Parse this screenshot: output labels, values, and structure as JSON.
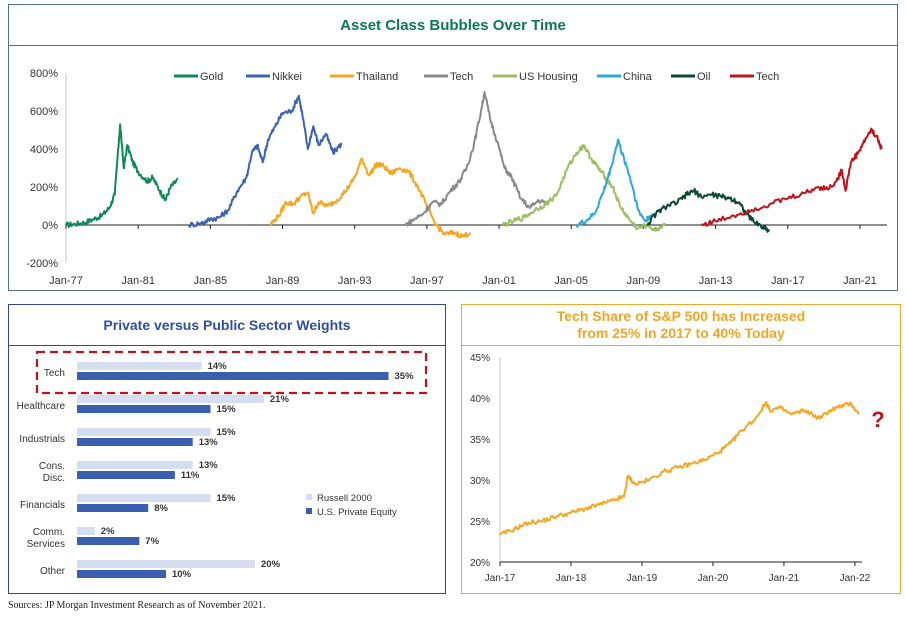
{
  "source": "Sources: JP Morgan Investment Research as of November 2021.",
  "chart_data": [
    {
      "type": "line",
      "title": "Asset Class Bubbles Over Time",
      "xlabel": "",
      "ylabel": "",
      "x_ticks": [
        "Jan-77",
        "Jan-81",
        "Jan-85",
        "Jan-89",
        "Jan-93",
        "Jan-97",
        "Jan-01",
        "Jan-05",
        "Jan-09",
        "Jan-13",
        "Jan-17",
        "Jan-21"
      ],
      "xlim": [
        1977,
        2022.5
      ],
      "y_ticks": [
        "800%",
        "600%",
        "400%",
        "200%",
        "0%",
        "-200%"
      ],
      "ylim": [
        -200,
        800
      ],
      "legend_position": "top",
      "series": [
        {
          "name": "Gold",
          "color": "#0e8a57",
          "points": [
            [
              1977,
              0
            ],
            [
              1977.5,
              5
            ],
            [
              1978,
              12
            ],
            [
              1978.5,
              30
            ],
            [
              1979,
              50
            ],
            [
              1979.4,
              90
            ],
            [
              1979.7,
              160
            ],
            [
              1980.0,
              530
            ],
            [
              1980.2,
              300
            ],
            [
              1980.4,
              420
            ],
            [
              1980.7,
              330
            ],
            [
              1981,
              280
            ],
            [
              1981.5,
              230
            ],
            [
              1981.8,
              250
            ],
            [
              1982.2,
              180
            ],
            [
              1982.5,
              130
            ],
            [
              1982.8,
              200
            ],
            [
              1983.2,
              240
            ]
          ]
        },
        {
          "name": "Nikkei",
          "color": "#3a62b5",
          "points": [
            [
              1983.8,
              0
            ],
            [
              1984.5,
              10
            ],
            [
              1985,
              30
            ],
            [
              1985.5,
              40
            ],
            [
              1986,
              80
            ],
            [
              1986.5,
              180
            ],
            [
              1987,
              250
            ],
            [
              1987.3,
              380
            ],
            [
              1987.6,
              420
            ],
            [
              1987.9,
              330
            ],
            [
              1988.2,
              450
            ],
            [
              1988.6,
              520
            ],
            [
              1989.0,
              590
            ],
            [
              1989.5,
              600
            ],
            [
              1989.9,
              680
            ],
            [
              1990.1,
              580
            ],
            [
              1990.4,
              400
            ],
            [
              1990.7,
              520
            ],
            [
              1991.0,
              420
            ],
            [
              1991.4,
              480
            ],
            [
              1991.8,
              380
            ],
            [
              1992.3,
              430
            ]
          ]
        },
        {
          "name": "Thailand",
          "color": "#f5a623",
          "points": [
            [
              1988.3,
              0
            ],
            [
              1988.8,
              50
            ],
            [
              1989.2,
              120
            ],
            [
              1989.6,
              110
            ],
            [
              1990,
              150
            ],
            [
              1990.4,
              170
            ],
            [
              1990.7,
              60
            ],
            [
              1991.0,
              120
            ],
            [
              1991.5,
              100
            ],
            [
              1992,
              130
            ],
            [
              1992.5,
              180
            ],
            [
              1993,
              250
            ],
            [
              1993.4,
              350
            ],
            [
              1993.8,
              260
            ],
            [
              1994.2,
              320
            ],
            [
              1994.6,
              310
            ],
            [
              1995,
              270
            ],
            [
              1995.5,
              300
            ],
            [
              1996,
              280
            ],
            [
              1996.5,
              200
            ],
            [
              1997,
              100
            ],
            [
              1997.5,
              0
            ],
            [
              1998,
              -50
            ],
            [
              1998.5,
              -40
            ],
            [
              1999,
              -60
            ],
            [
              1999.4,
              -40
            ]
          ]
        },
        {
          "name": "Tech",
          "color": "#8a8a8a",
          "points": [
            [
              1995.8,
              0
            ],
            [
              1996.3,
              30
            ],
            [
              1996.8,
              60
            ],
            [
              1997.3,
              120
            ],
            [
              1997.8,
              110
            ],
            [
              1998.3,
              180
            ],
            [
              1998.8,
              230
            ],
            [
              1999.2,
              300
            ],
            [
              1999.6,
              420
            ],
            [
              2000.0,
              600
            ],
            [
              2000.2,
              700
            ],
            [
              2000.5,
              560
            ],
            [
              2000.9,
              440
            ],
            [
              2001.3,
              300
            ],
            [
              2001.7,
              250
            ],
            [
              2002.2,
              140
            ],
            [
              2002.7,
              90
            ],
            [
              2003.2,
              130
            ],
            [
              2003.7,
              110
            ]
          ]
        },
        {
          "name": "US Housing",
          "color": "#9bbf63",
          "points": [
            [
              2001.2,
              0
            ],
            [
              2001.8,
              20
            ],
            [
              2002.4,
              40
            ],
            [
              2003,
              80
            ],
            [
              2003.6,
              110
            ],
            [
              2004.2,
              160
            ],
            [
              2004.8,
              300
            ],
            [
              2005.3,
              380
            ],
            [
              2005.7,
              420
            ],
            [
              2006.1,
              350
            ],
            [
              2006.5,
              300
            ],
            [
              2006.9,
              250
            ],
            [
              2007.3,
              200
            ],
            [
              2007.7,
              100
            ],
            [
              2008.2,
              30
            ],
            [
              2008.7,
              -20
            ],
            [
              2009.2,
              0
            ],
            [
              2009.7,
              -30
            ],
            [
              2010.2,
              10
            ]
          ]
        },
        {
          "name": "China",
          "color": "#2aa9d9",
          "points": [
            [
              2005.3,
              0
            ],
            [
              2005.8,
              20
            ],
            [
              2006.3,
              60
            ],
            [
              2006.8,
              180
            ],
            [
              2007.2,
              300
            ],
            [
              2007.6,
              450
            ],
            [
              2007.8,
              380
            ],
            [
              2008.1,
              300
            ],
            [
              2008.4,
              200
            ],
            [
              2008.7,
              80
            ],
            [
              2009.1,
              20
            ],
            [
              2009.5,
              60
            ]
          ]
        },
        {
          "name": "Oil",
          "color": "#0b4a30",
          "points": [
            [
              2009.2,
              0
            ],
            [
              2009.7,
              60
            ],
            [
              2010.3,
              100
            ],
            [
              2010.9,
              120
            ],
            [
              2011.4,
              160
            ],
            [
              2011.8,
              180
            ],
            [
              2012.2,
              150
            ],
            [
              2012.8,
              160
            ],
            [
              2013.3,
              150
            ],
            [
              2013.8,
              140
            ],
            [
              2014.3,
              120
            ],
            [
              2014.7,
              60
            ],
            [
              2015.1,
              20
            ],
            [
              2015.6,
              -10
            ],
            [
              2016.0,
              -30
            ]
          ]
        },
        {
          "name": "Tech",
          "color": "#c0141c",
          "points": [
            [
              2012.2,
              0
            ],
            [
              2013,
              20
            ],
            [
              2014,
              50
            ],
            [
              2015,
              80
            ],
            [
              2016,
              110
            ],
            [
              2017,
              140
            ],
            [
              2018,
              170
            ],
            [
              2018.7,
              200
            ],
            [
              2019.2,
              190
            ],
            [
              2019.7,
              230
            ],
            [
              2020.0,
              290
            ],
            [
              2020.2,
              180
            ],
            [
              2020.5,
              330
            ],
            [
              2020.9,
              380
            ],
            [
              2021.3,
              450
            ],
            [
              2021.6,
              500
            ],
            [
              2021.9,
              470
            ],
            [
              2022.2,
              400
            ]
          ]
        }
      ]
    },
    {
      "type": "bar",
      "orientation": "horizontal",
      "title": "Private versus Public Sector Weights",
      "categories": [
        "Tech",
        "Healthcare",
        "Industrials",
        "Cons.\nDisc.",
        "Financials",
        "Comm.\nServices",
        "Other"
      ],
      "xlim": [
        0,
        40
      ],
      "legend_position": "right",
      "highlight": "Tech",
      "series": [
        {
          "name": "Russell 2000",
          "color": "#d5ddf1",
          "values": [
            14,
            21,
            15,
            13,
            15,
            2,
            20
          ],
          "labels": [
            "14%",
            "21%",
            "15%",
            "13%",
            "15%",
            "2%",
            "20%"
          ]
        },
        {
          "name": "U.S. Private Equity",
          "color": "#3a5fb0",
          "values": [
            35,
            15,
            13,
            11,
            8,
            7,
            10
          ],
          "labels": [
            "35%",
            "15%",
            "13%",
            "11%",
            "8%",
            "7%",
            "10%"
          ]
        }
      ]
    },
    {
      "type": "line",
      "title": "Tech Share of S&P 500 has Increased from 25% in 2017 to 40% Today",
      "title_lines": [
        "Tech Share of S&P 500 has Increased",
        "from 25% in 2017 to 40% Today"
      ],
      "x_ticks": [
        "Jan-17",
        "Jan-18",
        "Jan-19",
        "Jan-20",
        "Jan-21",
        "Jan-22"
      ],
      "xlim": [
        2017,
        2022.1
      ],
      "y_ticks": [
        "45%",
        "40%",
        "35%",
        "30%",
        "25%",
        "20%"
      ],
      "ylim": [
        20,
        45
      ],
      "annotation": "?",
      "series": [
        {
          "name": "Tech Share of S&P 500",
          "color": "#f5a623",
          "points": [
            [
              2017.0,
              23.3
            ],
            [
              2017.2,
              24.0
            ],
            [
              2017.4,
              24.8
            ],
            [
              2017.6,
              25.0
            ],
            [
              2017.8,
              25.6
            ],
            [
              2018.0,
              26.0
            ],
            [
              2018.2,
              26.5
            ],
            [
              2018.4,
              27.0
            ],
            [
              2018.6,
              27.5
            ],
            [
              2018.75,
              28.0
            ],
            [
              2018.8,
              30.5
            ],
            [
              2018.9,
              29.5
            ],
            [
              2019.1,
              30.0
            ],
            [
              2019.3,
              31.0
            ],
            [
              2019.5,
              31.5
            ],
            [
              2019.7,
              32.0
            ],
            [
              2019.9,
              32.5
            ],
            [
              2020.1,
              33.5
            ],
            [
              2020.25,
              34.5
            ],
            [
              2020.4,
              36.0
            ],
            [
              2020.6,
              37.5
            ],
            [
              2020.75,
              39.5
            ],
            [
              2020.8,
              38.5
            ],
            [
              2020.95,
              38.8
            ],
            [
              2021.1,
              38.0
            ],
            [
              2021.3,
              38.5
            ],
            [
              2021.5,
              37.5
            ],
            [
              2021.65,
              38.5
            ],
            [
              2021.8,
              39.0
            ],
            [
              2021.95,
              39.3
            ],
            [
              2022.05,
              38.0
            ]
          ]
        }
      ]
    }
  ]
}
